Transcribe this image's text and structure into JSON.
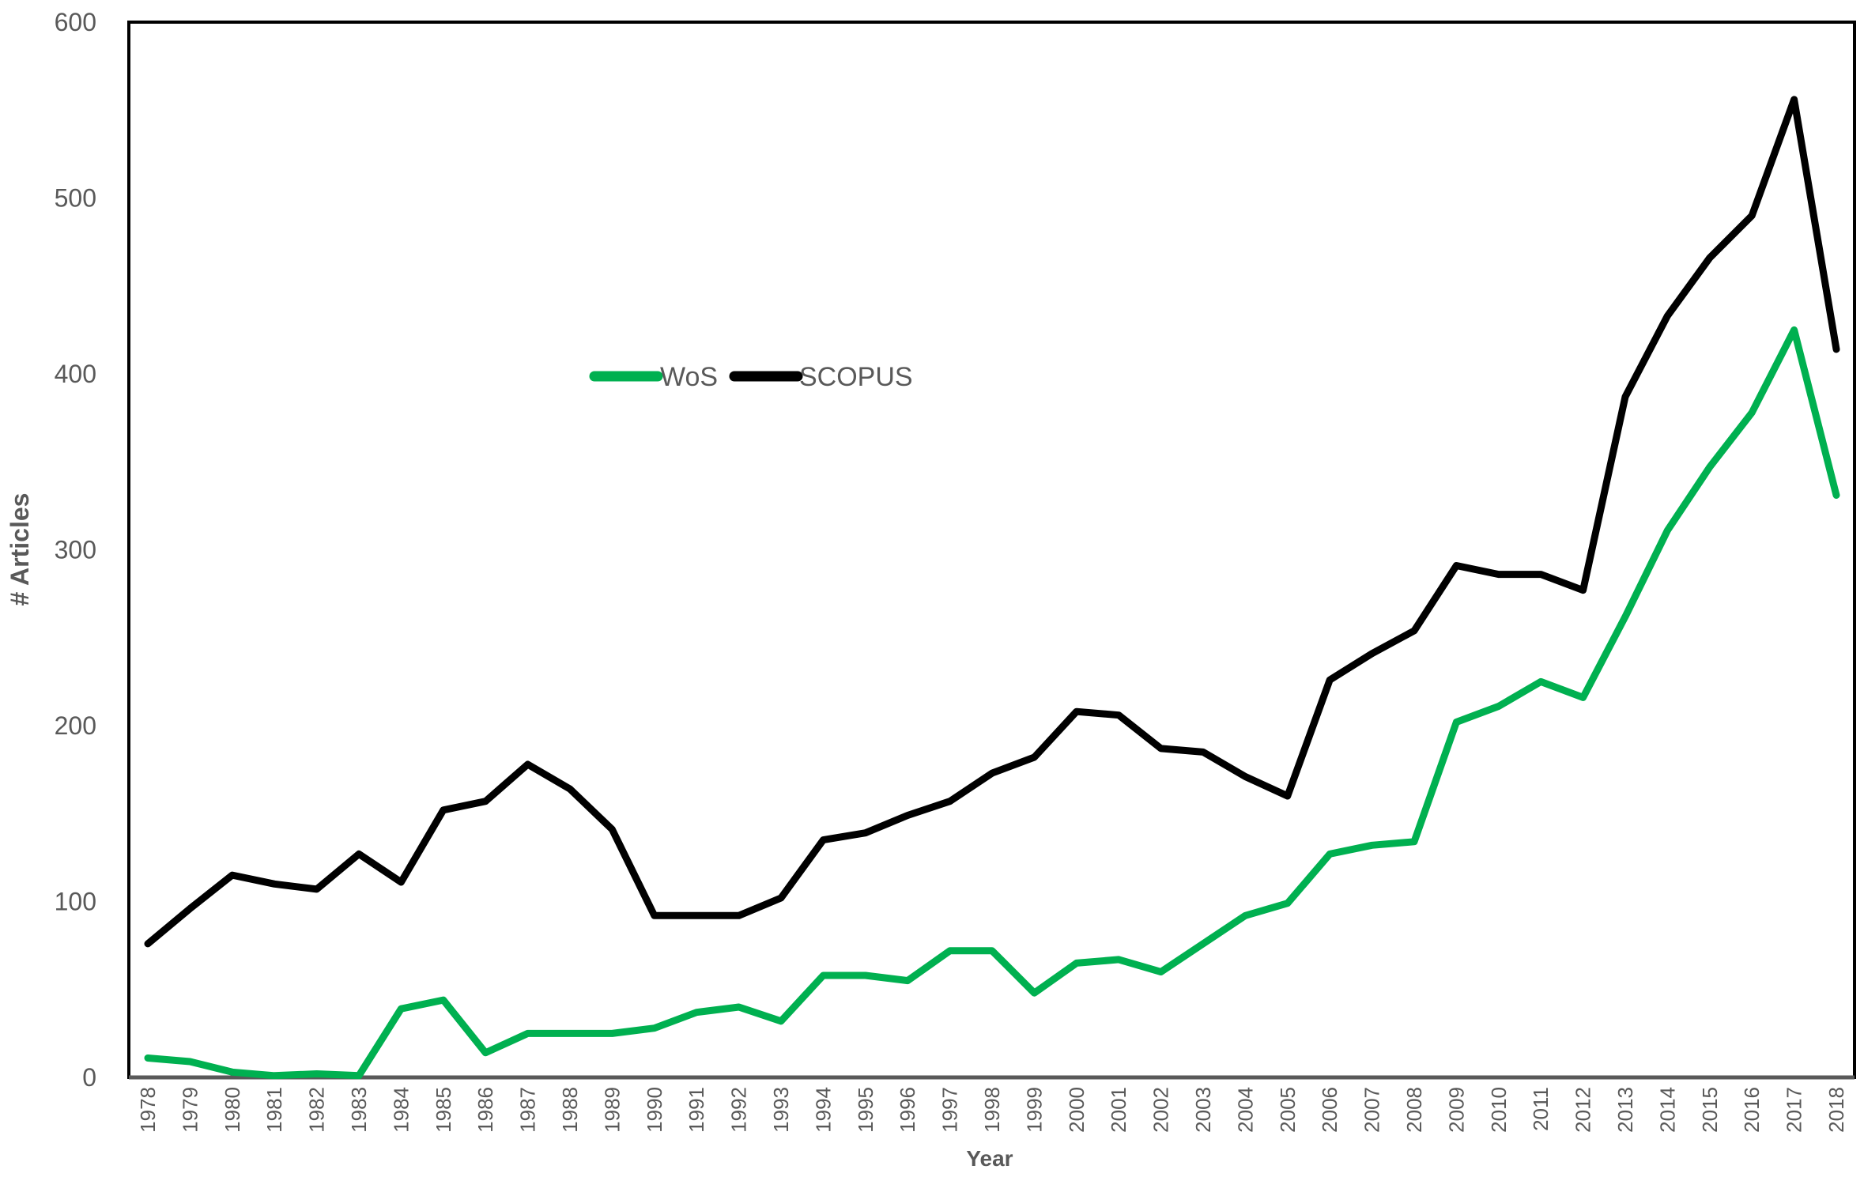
{
  "chart_data": {
    "type": "line",
    "title": "",
    "xlabel": "Year",
    "ylabel": "# Articles",
    "ylim": [
      0,
      600
    ],
    "yticks": [
      0,
      100,
      200,
      300,
      400,
      500,
      600
    ],
    "grid": false,
    "legend_position": "center-left",
    "categories": [
      "1978",
      "1979",
      "1980",
      "1981",
      "1982",
      "1983",
      "1984",
      "1985",
      "1986",
      "1987",
      "1988",
      "1989",
      "1990",
      "1991",
      "1992",
      "1993",
      "1994",
      "1995",
      "1996",
      "1997",
      "1998",
      "1999",
      "2000",
      "2001",
      "2002",
      "2003",
      "2004",
      "2005",
      "2006",
      "2007",
      "2008",
      "2009",
      "2010",
      "2011",
      "2012",
      "2013",
      "2014",
      "2015",
      "2016",
      "2017",
      "2018"
    ],
    "series": [
      {
        "name": "WoS",
        "color": "#00b050",
        "values": [
          11,
          9,
          3,
          1,
          2,
          1,
          39,
          44,
          14,
          25,
          25,
          25,
          28,
          37,
          40,
          32,
          58,
          58,
          55,
          72,
          72,
          48,
          65,
          67,
          60,
          76,
          92,
          99,
          127,
          132,
          134,
          202,
          211,
          225,
          216,
          262,
          311,
          347,
          378,
          425,
          331
        ]
      },
      {
        "name": "SCOPUS",
        "color": "#000000",
        "values": [
          76,
          96,
          115,
          110,
          107,
          127,
          111,
          152,
          157,
          178,
          164,
          141,
          92,
          92,
          92,
          102,
          135,
          139,
          149,
          157,
          173,
          182,
          208,
          206,
          187,
          185,
          171,
          160,
          226,
          241,
          254,
          291,
          286,
          286,
          277,
          387,
          433,
          466,
          490,
          556,
          414
        ]
      }
    ]
  }
}
